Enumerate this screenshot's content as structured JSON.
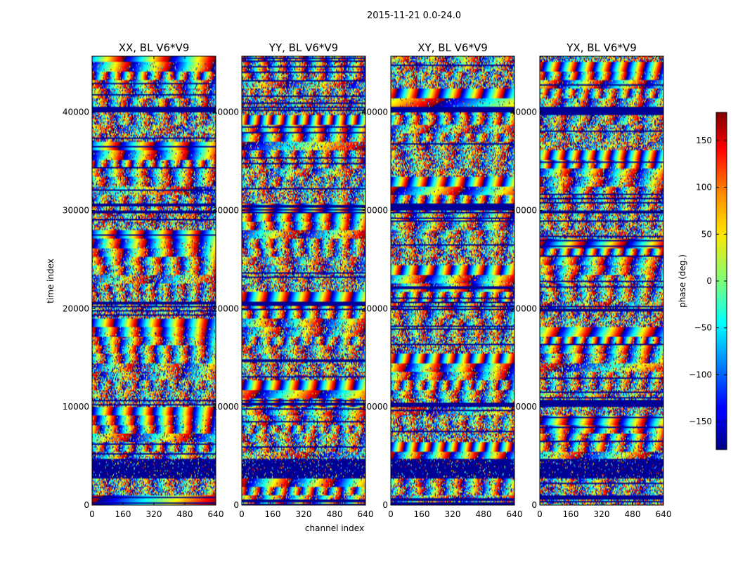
{
  "chart_data": {
    "type": "heatmap",
    "suptitle": "2015-11-21 0.0-24.0",
    "xlabel": "channel index",
    "ylabel": "time index",
    "x_ticks": [
      "0",
      "160",
      "320",
      "480",
      "640"
    ],
    "y_ticks": [
      "0",
      "10000",
      "20000",
      "30000",
      "40000"
    ],
    "xlim": [
      0,
      640
    ],
    "ylim": [
      0,
      45700
    ],
    "panels": [
      {
        "title": "XX, BL V6*V9"
      },
      {
        "title": "YY, BL V6*V9"
      },
      {
        "title": "XY, BL V6*V9"
      },
      {
        "title": "YX, BL V6*V9"
      }
    ],
    "colorbar": {
      "label": "phase (deg.)",
      "colormap": "jet",
      "range": [
        -180,
        180
      ],
      "ticks": [
        "150",
        "100",
        "50",
        "0",
        "−50",
        "−100",
        "−150"
      ]
    }
  }
}
